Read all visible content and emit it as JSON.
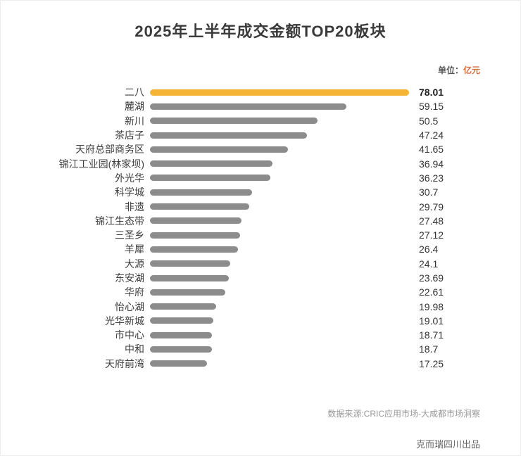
{
  "title": "2025年上半年成交金额TOP20板块",
  "unit": {
    "prefix": "单位：",
    "value": "亿元"
  },
  "chart_data": {
    "type": "bar",
    "orientation": "horizontal",
    "title": "2025年上半年成交金额TOP20板块",
    "unit": "亿元",
    "categories": [
      "二八",
      "麓湖",
      "新川",
      "茶店子",
      "天府总部商务区",
      "锦江工业园(林家坝)",
      "外光华",
      "科学城",
      "非遗",
      "锦江生态带",
      "三圣乡",
      "羊犀",
      "大源",
      "东安湖",
      "华府",
      "怡心湖",
      "光华新城",
      "市中心",
      "中和",
      "天府前湾"
    ],
    "values": [
      78.01,
      59.15,
      50.5,
      47.24,
      41.65,
      36.94,
      36.23,
      30.7,
      29.79,
      27.48,
      27.12,
      26.4,
      24.1,
      23.69,
      22.61,
      19.98,
      19.01,
      18.71,
      18.7,
      17.25
    ],
    "xlim": [
      0,
      78.01
    ],
    "highlight_index": 0,
    "highlight_color": "#F6B437",
    "bar_color": "#8C8C8C",
    "grid": false,
    "legend": false
  },
  "footer": {
    "source": "数据来源:CRIC应用市场-大成都市场洞察",
    "brand": "克而瑞四川出品"
  }
}
